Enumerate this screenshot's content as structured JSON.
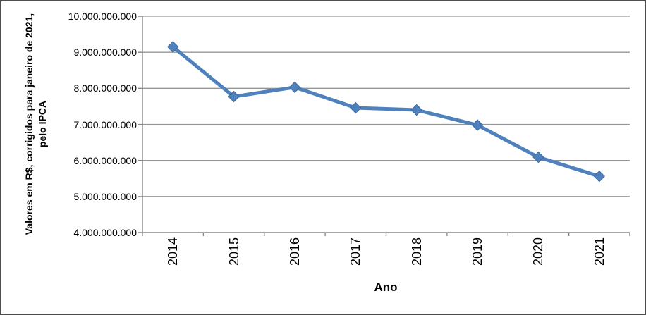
{
  "window": {
    "background": "#ffffff",
    "border_color": "#4d4d4d"
  },
  "chart_data": {
    "type": "line",
    "title": "",
    "xlabel": "Ano",
    "ylabel_lines": [
      "Valores em R$, corrigidos para janeiro de 2021,",
      "pelo IPCA"
    ],
    "categories": [
      "2014",
      "2015",
      "2016",
      "2017",
      "2018",
      "2019",
      "2020",
      "2021"
    ],
    "series": [
      {
        "name": "Valores em R$ corrigidos pelo IPCA",
        "values": [
          9150000000,
          7770000000,
          8030000000,
          7460000000,
          7400000000,
          6980000000,
          6090000000,
          5560000000
        ]
      }
    ],
    "ylim": [
      4000000000,
      10000000000
    ],
    "ytick_step": 1000000000,
    "ytick_labels": [
      "10.000.000.000",
      "9.000.000.000",
      "8.000.000.000",
      "7.000.000.000",
      "6.000.000.000",
      "5.000.000.000",
      "4.000.000.000"
    ],
    "grid": "horizontal-major",
    "legend": "none",
    "marker": "diamond",
    "line_color": "#4F81BD",
    "marker_edge_color": "#3E689F",
    "gridline_color": "#969696",
    "axis_color": "#808080",
    "text_color": "#000000"
  }
}
